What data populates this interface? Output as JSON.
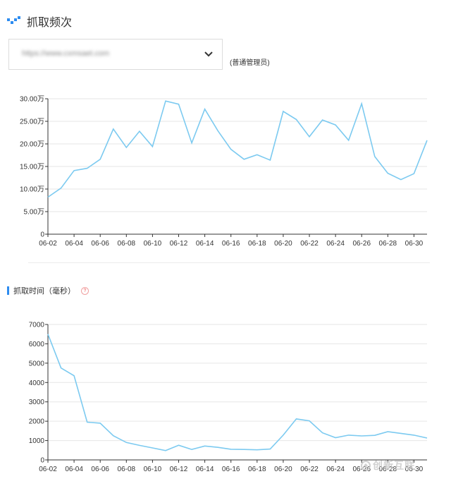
{
  "header": {
    "title": "抓取频次"
  },
  "site_select": {
    "value": "https://www.cxmsaet.com"
  },
  "role_label": "(普通管理员)",
  "section2": {
    "label": "抓取时间（毫秒）",
    "help": "?"
  },
  "watermark": {
    "text": "创新互联"
  },
  "colors": {
    "series": "#7ccaf0",
    "accent": "#2d8cf0"
  },
  "chart_data": [
    {
      "type": "line",
      "title": "",
      "xlabel": "",
      "ylabel": "",
      "ylim": [
        0,
        300000
      ],
      "yticks": [
        0,
        50000,
        100000,
        150000,
        200000,
        250000,
        300000
      ],
      "ytick_labels": [
        "0",
        "5.00万",
        "10.00万",
        "15.00万",
        "20.00万",
        "25.00万",
        "30.00万"
      ],
      "x": [
        "06-02",
        "06-03",
        "06-04",
        "06-05",
        "06-06",
        "06-07",
        "06-08",
        "06-09",
        "06-10",
        "06-11",
        "06-12",
        "06-13",
        "06-14",
        "06-15",
        "06-16",
        "06-17",
        "06-18",
        "06-19",
        "06-20",
        "06-21",
        "06-22",
        "06-23",
        "06-24",
        "06-25",
        "06-26",
        "06-27",
        "06-28",
        "06-29",
        "06-30",
        "07-01"
      ],
      "xtick_labels": [
        "06-02",
        "06-04",
        "06-06",
        "06-08",
        "06-10",
        "06-12",
        "06-14",
        "06-16",
        "06-18",
        "06-20",
        "06-22",
        "06-24",
        "06-26",
        "06-28",
        "06-30"
      ],
      "values": [
        82000,
        102000,
        141000,
        146000,
        166000,
        233000,
        192000,
        228000,
        194000,
        295000,
        288000,
        202000,
        277000,
        229000,
        188000,
        166000,
        176000,
        164000,
        272000,
        254000,
        216000,
        253000,
        242000,
        208000,
        289000,
        172000,
        135000,
        121000,
        134000,
        208000
      ],
      "grid": true
    },
    {
      "type": "line",
      "title": "",
      "xlabel": "",
      "ylabel": "",
      "ylim": [
        0,
        7000
      ],
      "yticks": [
        0,
        1000,
        2000,
        3000,
        4000,
        5000,
        6000,
        7000
      ],
      "ytick_labels": [
        "0",
        "1000",
        "2000",
        "3000",
        "4000",
        "5000",
        "6000",
        "7000"
      ],
      "x": [
        "06-02",
        "06-03",
        "06-04",
        "06-05",
        "06-06",
        "06-07",
        "06-08",
        "06-09",
        "06-10",
        "06-11",
        "06-12",
        "06-13",
        "06-14",
        "06-15",
        "06-16",
        "06-17",
        "06-18",
        "06-19",
        "06-20",
        "06-21",
        "06-22",
        "06-23",
        "06-24",
        "06-25",
        "06-26",
        "06-27",
        "06-28",
        "06-29",
        "06-30",
        "07-01"
      ],
      "xtick_labels": [
        "06-02",
        "06-04",
        "06-06",
        "06-08",
        "06-10",
        "06-12",
        "06-14",
        "06-16",
        "06-18",
        "06-20",
        "06-22",
        "06-24",
        "06-26",
        "06-28",
        "06-30"
      ],
      "values": [
        6500,
        4750,
        4350,
        1950,
        1900,
        1250,
        900,
        750,
        620,
        480,
        760,
        540,
        720,
        650,
        550,
        540,
        520,
        560,
        1280,
        2120,
        2020,
        1400,
        1150,
        1280,
        1240,
        1270,
        1460,
        1370,
        1280,
        1130
      ],
      "grid": true
    }
  ]
}
